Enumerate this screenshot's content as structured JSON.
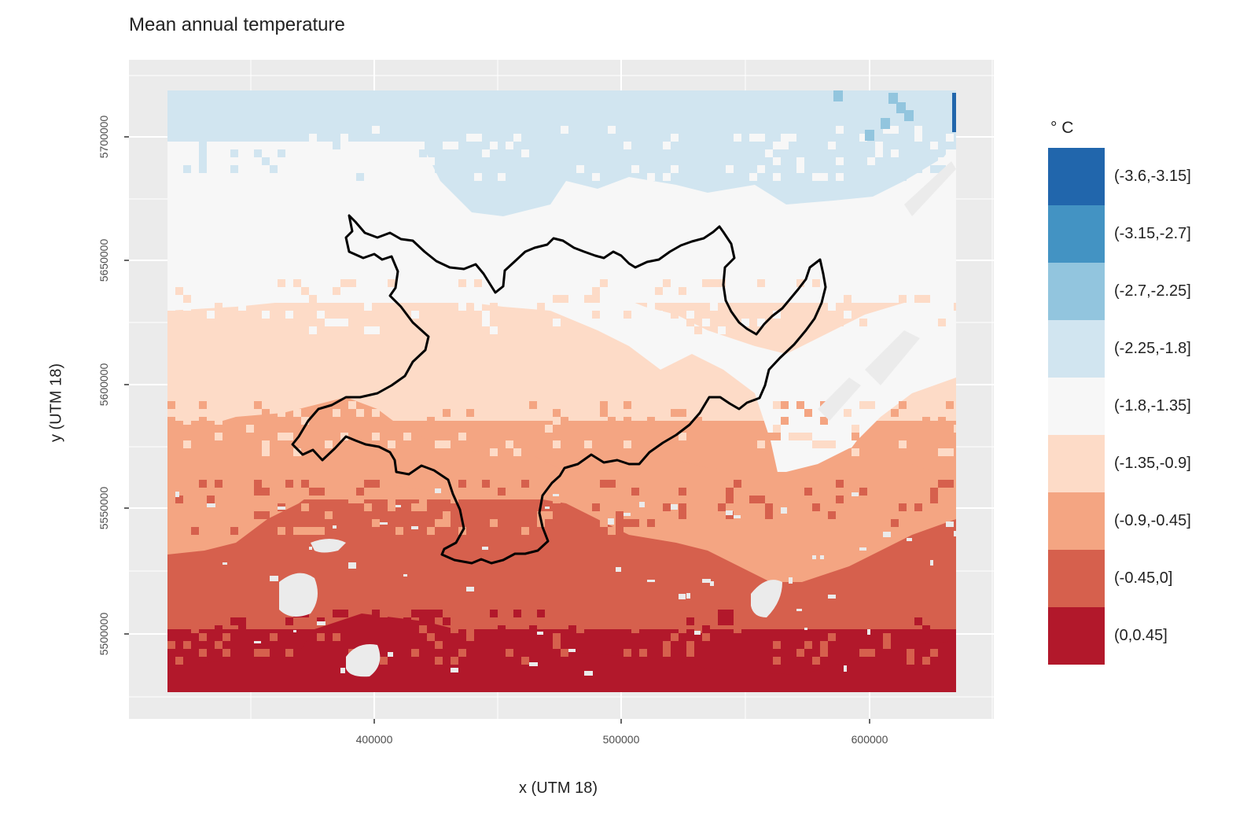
{
  "title": "Mean annual temperature",
  "x_axis": {
    "label": "x (UTM 18)",
    "ticks": [
      "400000",
      "500000",
      "600000"
    ]
  },
  "y_axis": {
    "label": "y (UTM 18)",
    "ticks": [
      "5500000",
      "5550000",
      "5600000",
      "5650000",
      "5700000"
    ]
  },
  "legend": {
    "title": "° C",
    "items": [
      {
        "label": "(-3.6,-3.15]",
        "color": "#2166ac"
      },
      {
        "label": "(-3.15,-2.7]",
        "color": "#4393c3"
      },
      {
        "label": "(-2.7,-2.25]",
        "color": "#92c5de"
      },
      {
        "label": "(-2.25,-1.8]",
        "color": "#d1e5f0"
      },
      {
        "label": "(-1.8,-1.35]",
        "color": "#f7f7f7"
      },
      {
        "label": "(-1.35,-0.9]",
        "color": "#fddbc7"
      },
      {
        "label": "(-0.9,-0.45]",
        "color": "#f4a582"
      },
      {
        "label": "(-0.45,0]",
        "color": "#d6604d"
      },
      {
        "label": "(0,0.45]",
        "color": "#b2182b"
      }
    ]
  },
  "map": {
    "panel_background": "#ebebeb",
    "na_color": "#ebebeb",
    "boundary_color": "#000000",
    "extent_x": [
      320000,
      640000
    ],
    "extent_y": [
      5478000,
      5720000
    ],
    "gradient": "temperature increases from north (cooler, blue/white) to south (warmer, red)"
  }
}
